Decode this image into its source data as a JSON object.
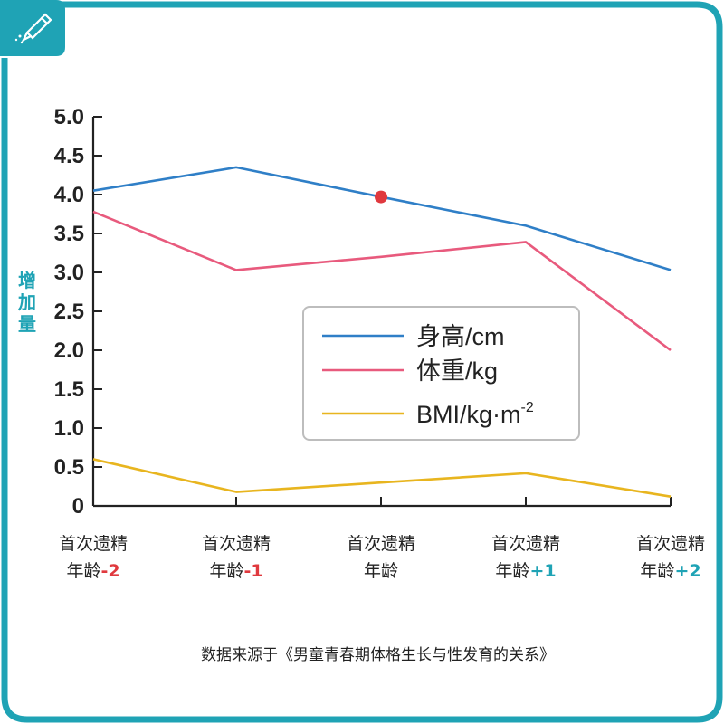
{
  "chart_data": {
    "type": "line",
    "ylabel": "增加量",
    "ylim": [
      0,
      5.0
    ],
    "yticks": [
      "0",
      "0.5",
      "1.0",
      "1.5",
      "2.0",
      "2.5",
      "3.0",
      "3.5",
      "4.0",
      "4.5",
      "5.0"
    ],
    "categories": [
      {
        "line1": "首次遗精",
        "line2": "年龄",
        "suffix": "-2",
        "suffix_color": "#e0393e"
      },
      {
        "line1": "首次遗精",
        "line2": "年龄",
        "suffix": "-1",
        "suffix_color": "#e0393e"
      },
      {
        "line1": "首次遗精",
        "line2": "年龄",
        "suffix": "",
        "suffix_color": "#222222"
      },
      {
        "line1": "首次遗精",
        "line2": "年龄",
        "suffix": "+1",
        "suffix_color": "#1fa3b5"
      },
      {
        "line1": "首次遗精",
        "line2": "年龄",
        "suffix": "+2",
        "suffix_color": "#1fa3b5"
      }
    ],
    "series": [
      {
        "name": "身高/cm",
        "color": "#2f7fc7",
        "values": [
          4.05,
          4.35,
          3.97,
          3.6,
          3.03
        ]
      },
      {
        "name": "体重/kg",
        "color": "#e85a7d",
        "values": [
          3.78,
          3.03,
          3.2,
          3.39,
          2.0
        ]
      },
      {
        "name": "BMI/kg·m",
        "superscript": "-2",
        "color": "#e8b51f",
        "values": [
          0.6,
          0.18,
          0.3,
          0.42,
          0.12
        ]
      }
    ],
    "highlight_point": {
      "series": 0,
      "index": 2,
      "color": "#e0393e"
    },
    "legend": "center"
  },
  "source_text": "数据来源于《男童青春期体格生长与性发育的关系》",
  "colors": {
    "frame": "#1fa3b5",
    "axis": "#222222",
    "ylabel": "#1fa3b5"
  }
}
